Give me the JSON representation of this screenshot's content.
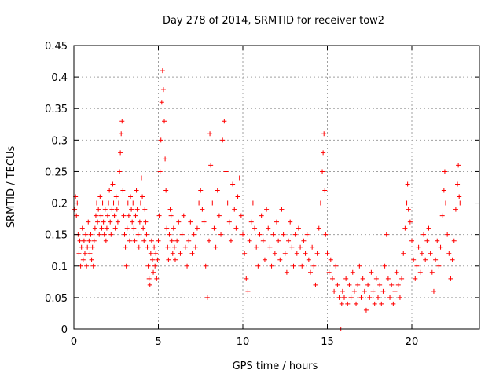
{
  "chart_data": {
    "type": "scatter",
    "title": "Day 278 of 2014, SRMTID for receiver tow2",
    "xlabel": "GPS time / hours",
    "ylabel": "SRMTID / TECUs",
    "xlim": [
      0,
      24
    ],
    "ylim": [
      0,
      0.45
    ],
    "xticks": [
      0,
      5,
      10,
      15,
      20
    ],
    "xtick_labels": [
      "0",
      "5",
      "10",
      "15",
      "20"
    ],
    "yticks": [
      0,
      0.05,
      0.1,
      0.15,
      0.2,
      0.25,
      0.3,
      0.35,
      0.4,
      0.45
    ],
    "ytick_labels": [
      "0",
      "0.05",
      "0.1",
      "0.15",
      "0.2",
      "0.25",
      "0.3",
      "0.35",
      "0.4",
      "0.45"
    ],
    "grid": true,
    "series": [
      {
        "name": "SRMTID",
        "color": "#ff0000",
        "marker": "plus",
        "points": [
          [
            0.05,
            0.19
          ],
          [
            0.1,
            0.21
          ],
          [
            0.15,
            0.18
          ],
          [
            0.2,
            0.2
          ],
          [
            0.25,
            0.15
          ],
          [
            0.3,
            0.12
          ],
          [
            0.35,
            0.14
          ],
          [
            0.4,
            0.1
          ],
          [
            0.45,
            0.13
          ],
          [
            0.5,
            0.16
          ],
          [
            0.55,
            0.11
          ],
          [
            0.6,
            0.14
          ],
          [
            0.65,
            0.12
          ],
          [
            0.7,
            0.15
          ],
          [
            0.75,
            0.1
          ],
          [
            0.8,
            0.13
          ],
          [
            0.85,
            0.17
          ],
          [
            0.9,
            0.14
          ],
          [
            0.95,
            0.12
          ],
          [
            1.0,
            0.15
          ],
          [
            1.05,
            0.11
          ],
          [
            1.1,
            0.13
          ],
          [
            1.15,
            0.1
          ],
          [
            1.2,
            0.14
          ],
          [
            1.25,
            0.16
          ],
          [
            1.3,
            0.18
          ],
          [
            1.35,
            0.2
          ],
          [
            1.4,
            0.17
          ],
          [
            1.45,
            0.19
          ],
          [
            1.5,
            0.15
          ],
          [
            1.55,
            0.21
          ],
          [
            1.6,
            0.18
          ],
          [
            1.65,
            0.16
          ],
          [
            1.7,
            0.2
          ],
          [
            1.75,
            0.17
          ],
          [
            1.8,
            0.15
          ],
          [
            1.85,
            0.19
          ],
          [
            1.9,
            0.14
          ],
          [
            1.95,
            0.16
          ],
          [
            2.0,
            0.18
          ],
          [
            2.05,
            0.2
          ],
          [
            2.1,
            0.22
          ],
          [
            2.15,
            0.17
          ],
          [
            2.2,
            0.15
          ],
          [
            2.25,
            0.19
          ],
          [
            2.3,
            0.23
          ],
          [
            2.35,
            0.2
          ],
          [
            2.4,
            0.18
          ],
          [
            2.45,
            0.16
          ],
          [
            2.5,
            0.21
          ],
          [
            2.55,
            0.19
          ],
          [
            2.6,
            0.17
          ],
          [
            2.65,
            0.2
          ],
          [
            2.7,
            0.25
          ],
          [
            2.75,
            0.28
          ],
          [
            2.8,
            0.31
          ],
          [
            2.85,
            0.33
          ],
          [
            2.9,
            0.22
          ],
          [
            2.95,
            0.18
          ],
          [
            3.0,
            0.15
          ],
          [
            3.05,
            0.13
          ],
          [
            3.1,
            0.1
          ],
          [
            3.15,
            0.16
          ],
          [
            3.2,
            0.2
          ],
          [
            3.25,
            0.18
          ],
          [
            3.3,
            0.14
          ],
          [
            3.35,
            0.21
          ],
          [
            3.4,
            0.19
          ],
          [
            3.45,
            0.17
          ],
          [
            3.5,
            0.2
          ],
          [
            3.55,
            0.16
          ],
          [
            3.6,
            0.14
          ],
          [
            3.65,
            0.18
          ],
          [
            3.7,
            0.22
          ],
          [
            3.75,
            0.19
          ],
          [
            3.8,
            0.15
          ],
          [
            3.85,
            0.13
          ],
          [
            3.9,
            0.17
          ],
          [
            3.95,
            0.2
          ],
          [
            4.0,
            0.24
          ],
          [
            4.05,
            0.21
          ],
          [
            4.1,
            0.16
          ],
          [
            4.15,
            0.14
          ],
          [
            4.2,
            0.19
          ],
          [
            4.25,
            0.17
          ],
          [
            4.3,
            0.15
          ],
          [
            4.35,
            0.13
          ],
          [
            4.4,
            0.1
          ],
          [
            4.45,
            0.08
          ],
          [
            4.5,
            0.07
          ],
          [
            4.55,
            0.12
          ],
          [
            4.6,
            0.14
          ],
          [
            4.65,
            0.11
          ],
          [
            4.7,
            0.09
          ],
          [
            4.75,
            0.13
          ],
          [
            4.8,
            0.1
          ],
          [
            4.85,
            0.12
          ],
          [
            4.9,
            0.08
          ],
          [
            4.95,
            0.11
          ],
          [
            5.0,
            0.14
          ],
          [
            5.05,
            0.18
          ],
          [
            5.1,
            0.25
          ],
          [
            5.15,
            0.3
          ],
          [
            5.2,
            0.36
          ],
          [
            5.25,
            0.41
          ],
          [
            5.3,
            0.38
          ],
          [
            5.35,
            0.33
          ],
          [
            5.4,
            0.27
          ],
          [
            5.45,
            0.22
          ],
          [
            5.5,
            0.16
          ],
          [
            5.55,
            0.13
          ],
          [
            5.6,
            0.11
          ],
          [
            5.65,
            0.15
          ],
          [
            5.7,
            0.19
          ],
          [
            5.75,
            0.18
          ],
          [
            5.8,
            0.14
          ],
          [
            5.85,
            0.12
          ],
          [
            5.9,
            0.16
          ],
          [
            5.95,
            0.13
          ],
          [
            6.0,
            0.11
          ],
          [
            6.1,
            0.14
          ],
          [
            6.2,
            0.17
          ],
          [
            6.3,
            0.12
          ],
          [
            6.4,
            0.15
          ],
          [
            6.5,
            0.18
          ],
          [
            6.6,
            0.13
          ],
          [
            6.7,
            0.1
          ],
          [
            6.8,
            0.14
          ],
          [
            6.9,
            0.17
          ],
          [
            7.0,
            0.12
          ],
          [
            7.1,
            0.15
          ],
          [
            7.2,
            0.13
          ],
          [
            7.3,
            0.16
          ],
          [
            7.4,
            0.2
          ],
          [
            7.5,
            0.22
          ],
          [
            7.6,
            0.19
          ],
          [
            7.7,
            0.17
          ],
          [
            7.8,
            0.1
          ],
          [
            7.9,
            0.05
          ],
          [
            8.0,
            0.14
          ],
          [
            8.05,
            0.31
          ],
          [
            8.1,
            0.26
          ],
          [
            8.2,
            0.2
          ],
          [
            8.3,
            0.16
          ],
          [
            8.4,
            0.13
          ],
          [
            8.5,
            0.22
          ],
          [
            8.6,
            0.18
          ],
          [
            8.7,
            0.15
          ],
          [
            8.8,
            0.3
          ],
          [
            8.9,
            0.33
          ],
          [
            9.0,
            0.25
          ],
          [
            9.1,
            0.2
          ],
          [
            9.2,
            0.17
          ],
          [
            9.3,
            0.14
          ],
          [
            9.4,
            0.23
          ],
          [
            9.5,
            0.19
          ],
          [
            9.6,
            0.16
          ],
          [
            9.7,
            0.21
          ],
          [
            9.8,
            0.24
          ],
          [
            9.9,
            0.18
          ],
          [
            10.0,
            0.15
          ],
          [
            10.1,
            0.12
          ],
          [
            10.2,
            0.08
          ],
          [
            10.3,
            0.06
          ],
          [
            10.4,
            0.14
          ],
          [
            10.5,
            0.17
          ],
          [
            10.6,
            0.2
          ],
          [
            10.7,
            0.16
          ],
          [
            10.8,
            0.13
          ],
          [
            10.9,
            0.1
          ],
          [
            11.0,
            0.15
          ],
          [
            11.1,
            0.18
          ],
          [
            11.2,
            0.14
          ],
          [
            11.3,
            0.11
          ],
          [
            11.4,
            0.19
          ],
          [
            11.5,
            0.16
          ],
          [
            11.6,
            0.13
          ],
          [
            11.7,
            0.1
          ],
          [
            11.8,
            0.15
          ],
          [
            11.9,
            0.12
          ],
          [
            12.0,
            0.17
          ],
          [
            12.1,
            0.14
          ],
          [
            12.2,
            0.11
          ],
          [
            12.3,
            0.19
          ],
          [
            12.4,
            0.15
          ],
          [
            12.5,
            0.12
          ],
          [
            12.6,
            0.09
          ],
          [
            12.7,
            0.14
          ],
          [
            12.8,
            0.17
          ],
          [
            12.9,
            0.13
          ],
          [
            13.0,
            0.1
          ],
          [
            13.1,
            0.15
          ],
          [
            13.2,
            0.12
          ],
          [
            13.3,
            0.16
          ],
          [
            13.4,
            0.13
          ],
          [
            13.5,
            0.1
          ],
          [
            13.6,
            0.14
          ],
          [
            13.7,
            0.12
          ],
          [
            13.8,
            0.15
          ],
          [
            13.9,
            0.11
          ],
          [
            14.0,
            0.09
          ],
          [
            14.1,
            0.13
          ],
          [
            14.2,
            0.1
          ],
          [
            14.3,
            0.07
          ],
          [
            14.4,
            0.12
          ],
          [
            14.5,
            0.16
          ],
          [
            14.6,
            0.2
          ],
          [
            14.7,
            0.25
          ],
          [
            14.75,
            0.28
          ],
          [
            14.8,
            0.31
          ],
          [
            14.85,
            0.22
          ],
          [
            14.9,
            0.15
          ],
          [
            15.0,
            0.12
          ],
          [
            15.1,
            0.09
          ],
          [
            15.2,
            0.11
          ],
          [
            15.3,
            0.08
          ],
          [
            15.4,
            0.06
          ],
          [
            15.5,
            0.1
          ],
          [
            15.6,
            0.07
          ],
          [
            15.7,
            0.05
          ],
          [
            15.8,
            0.0
          ],
          [
            15.85,
            0.04
          ],
          [
            15.9,
            0.06
          ],
          [
            16.0,
            0.05
          ],
          [
            16.1,
            0.08
          ],
          [
            16.2,
            0.04
          ],
          [
            16.3,
            0.07
          ],
          [
            16.4,
            0.05
          ],
          [
            16.5,
            0.09
          ],
          [
            16.6,
            0.06
          ],
          [
            16.7,
            0.04
          ],
          [
            16.8,
            0.07
          ],
          [
            16.9,
            0.1
          ],
          [
            17.0,
            0.05
          ],
          [
            17.1,
            0.08
          ],
          [
            17.2,
            0.06
          ],
          [
            17.3,
            0.03
          ],
          [
            17.4,
            0.07
          ],
          [
            17.5,
            0.05
          ],
          [
            17.6,
            0.09
          ],
          [
            17.7,
            0.06
          ],
          [
            17.8,
            0.04
          ],
          [
            17.9,
            0.08
          ],
          [
            18.0,
            0.05
          ],
          [
            18.1,
            0.07
          ],
          [
            18.2,
            0.04
          ],
          [
            18.3,
            0.06
          ],
          [
            18.4,
            0.1
          ],
          [
            18.5,
            0.15
          ],
          [
            18.6,
            0.08
          ],
          [
            18.7,
            0.05
          ],
          [
            18.8,
            0.07
          ],
          [
            18.9,
            0.04
          ],
          [
            19.0,
            0.06
          ],
          [
            19.1,
            0.09
          ],
          [
            19.2,
            0.07
          ],
          [
            19.3,
            0.05
          ],
          [
            19.4,
            0.08
          ],
          [
            19.5,
            0.12
          ],
          [
            19.6,
            0.16
          ],
          [
            19.7,
            0.2
          ],
          [
            19.75,
            0.23
          ],
          [
            19.8,
            0.19
          ],
          [
            19.9,
            0.17
          ],
          [
            20.0,
            0.14
          ],
          [
            20.1,
            0.11
          ],
          [
            20.2,
            0.08
          ],
          [
            20.3,
            0.1
          ],
          [
            20.4,
            0.13
          ],
          [
            20.5,
            0.09
          ],
          [
            20.6,
            0.12
          ],
          [
            20.7,
            0.15
          ],
          [
            20.8,
            0.11
          ],
          [
            20.9,
            0.14
          ],
          [
            21.0,
            0.16
          ],
          [
            21.1,
            0.12
          ],
          [
            21.2,
            0.09
          ],
          [
            21.3,
            0.06
          ],
          [
            21.4,
            0.11
          ],
          [
            21.5,
            0.14
          ],
          [
            21.6,
            0.1
          ],
          [
            21.7,
            0.13
          ],
          [
            21.8,
            0.18
          ],
          [
            21.9,
            0.22
          ],
          [
            21.95,
            0.25
          ],
          [
            22.0,
            0.2
          ],
          [
            22.1,
            0.15
          ],
          [
            22.2,
            0.12
          ],
          [
            22.3,
            0.08
          ],
          [
            22.4,
            0.11
          ],
          [
            22.5,
            0.14
          ],
          [
            22.6,
            0.19
          ],
          [
            22.7,
            0.23
          ],
          [
            22.75,
            0.26
          ],
          [
            22.8,
            0.21
          ],
          [
            22.85,
            0.2
          ]
        ]
      }
    ]
  }
}
